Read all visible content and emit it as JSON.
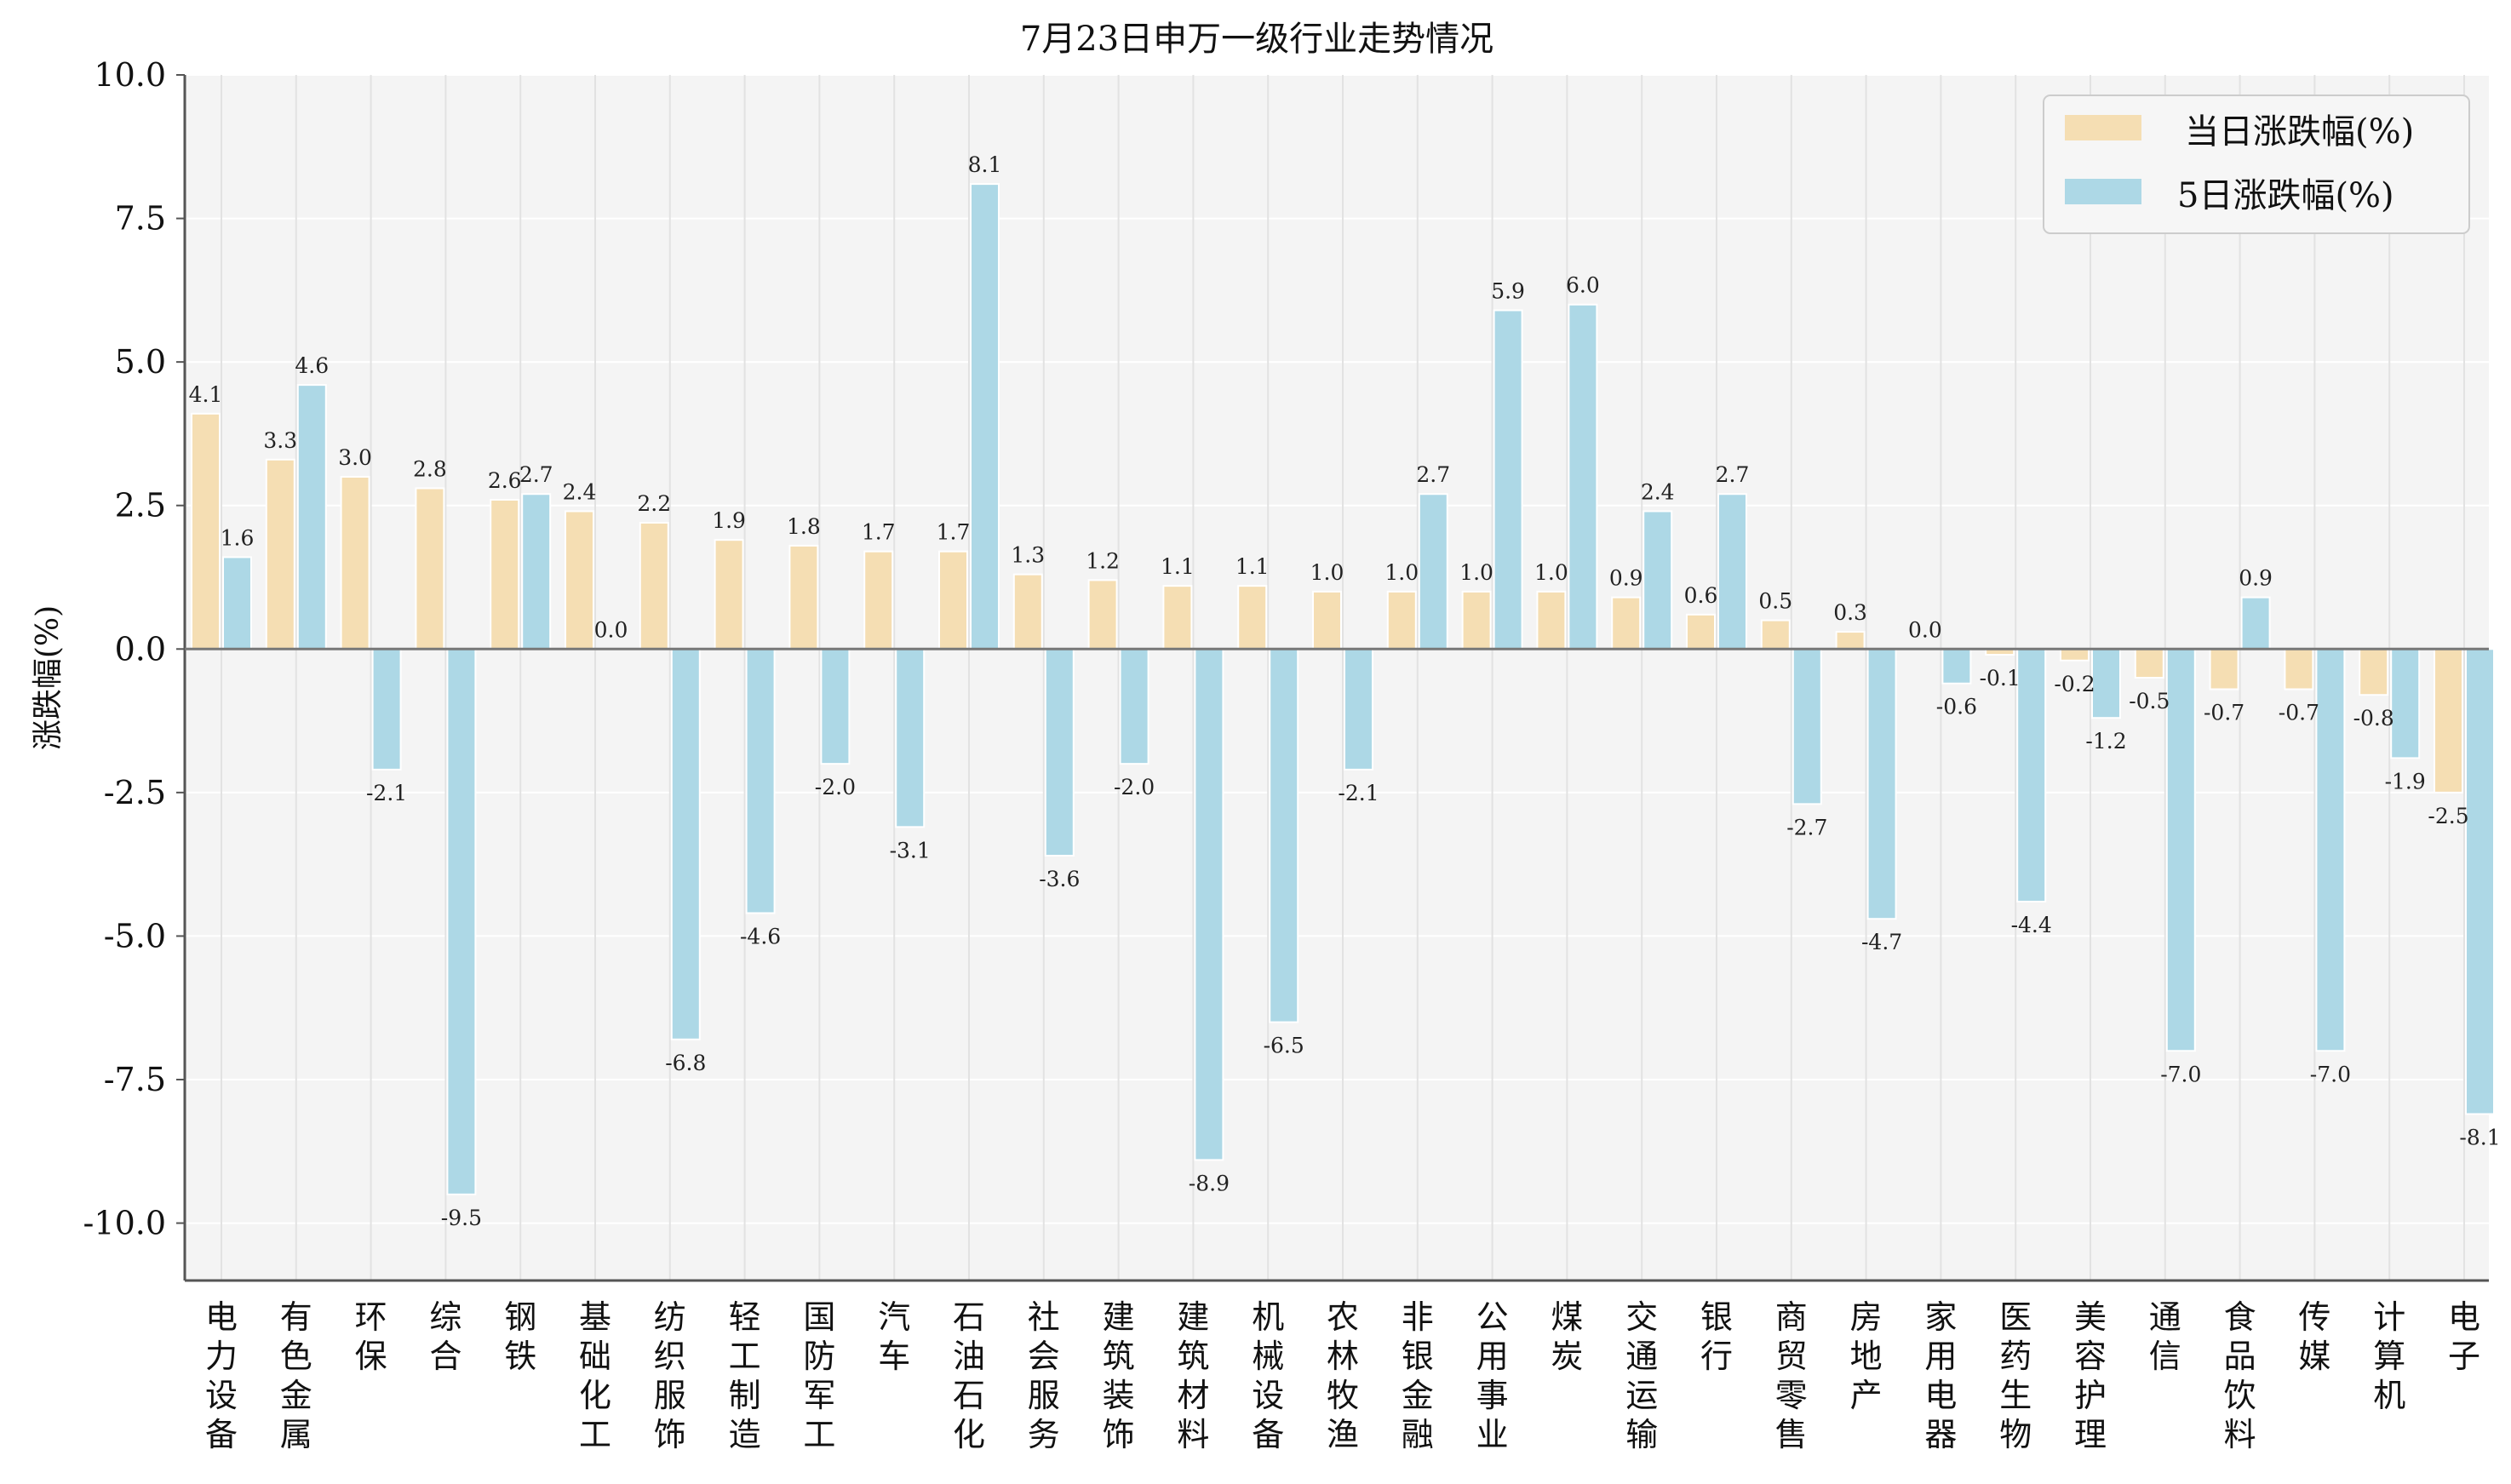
{
  "chart_data": {
    "type": "bar",
    "title": "7月23日申万一级行业走势情况",
    "xlabel": "",
    "ylabel": "涨跌幅(%)",
    "ylim": [
      -11.0,
      10.0
    ],
    "yticks": [
      10.0,
      7.5,
      5.0,
      2.5,
      0.0,
      -2.5,
      -5.0,
      -7.5,
      -10.0
    ],
    "ytick_labels": [
      "10.0",
      "7.5",
      "5.0",
      "2.5",
      "0.0",
      "-2.5",
      "-5.0",
      "-7.5",
      "-10.0"
    ],
    "grid": true,
    "legend_position": "top-right",
    "categories": [
      "电力设备",
      "有色金属",
      "环保",
      "综合",
      "钢铁",
      "基础化工",
      "纺织服饰",
      "轻工制造",
      "国防军工",
      "汽车",
      "石油石化",
      "社会服务",
      "建筑装饰",
      "建筑材料",
      "机械设备",
      "农林牧渔",
      "非银金融",
      "公用事业",
      "煤炭",
      "交通运输",
      "银行",
      "商贸零售",
      "房地产",
      "家用电器",
      "医药生物",
      "美容护理",
      "通信",
      "食品饮料",
      "传媒",
      "计算机",
      "电子"
    ],
    "series": [
      {
        "name": "当日涨跌幅(%)",
        "color": "#f5deb3",
        "values": [
          4.1,
          3.3,
          3.0,
          2.8,
          2.6,
          2.4,
          2.2,
          1.9,
          1.8,
          1.7,
          1.7,
          1.3,
          1.2,
          1.1,
          1.1,
          1.0,
          1.0,
          1.0,
          1.0,
          0.9,
          0.6,
          0.5,
          0.3,
          0.0,
          -0.1,
          -0.2,
          -0.5,
          -0.7,
          -0.7,
          -0.8,
          -2.5
        ],
        "labels": [
          "4.1",
          "3.3",
          "3.0",
          "2.8",
          "2.6",
          "2.4",
          "2.2",
          "1.9",
          "1.8",
          "1.7",
          "1.7",
          "1.3",
          "1.2",
          "1.1",
          "1.1",
          "1.0",
          "1.0",
          "1.0",
          "1.0",
          "0.9",
          "0.6",
          "0.5",
          "0.3",
          "0.0",
          "-0.1",
          "-0.2",
          "-0.5",
          "-0.7",
          "-0.7",
          "-0.8",
          "-2.5"
        ]
      },
      {
        "name": "5日涨跌幅(%)",
        "color": "#add8e6",
        "values": [
          1.6,
          4.6,
          -2.1,
          -9.5,
          2.7,
          0.0,
          -6.8,
          -4.6,
          -2.0,
          -3.1,
          8.1,
          -3.6,
          -2.0,
          -8.9,
          -6.5,
          -2.1,
          2.7,
          5.9,
          6.0,
          2.4,
          2.7,
          -2.7,
          -4.7,
          -0.6,
          -4.4,
          -1.2,
          -7.0,
          0.9,
          -7.0,
          -1.9,
          -8.1
        ],
        "labels": [
          "1.6",
          "4.6",
          "-2.1",
          "-9.5",
          "2.7",
          "0.0",
          "-6.8",
          "-4.6",
          "-2.0",
          "-3.1",
          "8.1",
          "-3.6",
          "-2.0",
          "-8.9",
          "-6.5",
          "-2.1",
          "2.7",
          "5.9",
          "6.0",
          "2.4",
          "2.7",
          "-2.7",
          "-4.7",
          "-0.6",
          "-4.4",
          "-1.2",
          "-7.0",
          "0.9",
          "-7.0",
          "-1.9",
          "-8.1"
        ]
      }
    ]
  }
}
